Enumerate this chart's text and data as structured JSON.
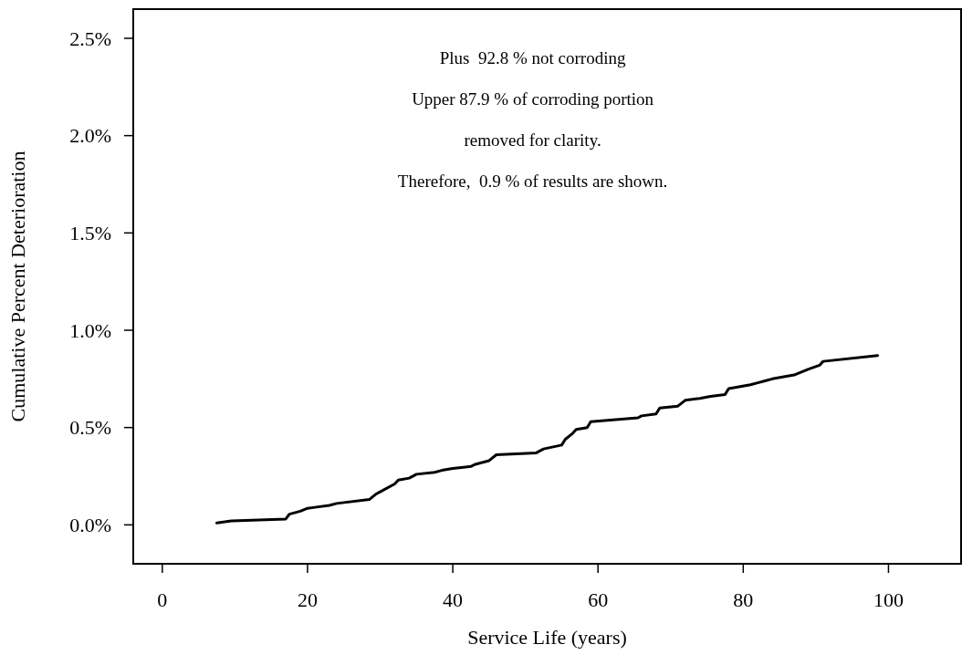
{
  "chart_data": {
    "type": "line",
    "xlabel": "Service Life (years)",
    "ylabel": "Cumulative Percent Deterioration",
    "annotations": [
      "Plus  92.8 % not corroding",
      "Upper 87.9 % of corroding portion",
      "removed for clarity.",
      "Therefore,  0.9 % of results are shown."
    ],
    "xlim": [
      -4,
      110
    ],
    "xticks": [
      0,
      20,
      40,
      60,
      80,
      100
    ],
    "ylim": [
      -0.2,
      2.65
    ],
    "yticks": [
      {
        "value": 0,
        "label": "0.0%"
      },
      {
        "value": 0.5,
        "label": "0.5%"
      },
      {
        "value": 1,
        "label": "1.0%"
      },
      {
        "value": 1.5,
        "label": "1.5%"
      },
      {
        "value": 2,
        "label": "2.0%"
      },
      {
        "value": 2.5,
        "label": "2.5%"
      }
    ],
    "grid": false,
    "line_style": "solid",
    "series": [
      {
        "color": "#000000",
        "x": [
          7.5,
          9.5,
          17,
          17.5,
          19,
          20,
          21,
          23,
          24,
          28.5,
          29.5,
          30,
          32,
          32.5,
          34,
          35,
          37.5,
          38.5,
          40,
          42.5,
          43,
          45,
          46,
          51.5,
          52.5,
          55,
          55.5,
          56.5,
          57,
          58.5,
          59,
          65.5,
          66,
          68,
          68.5,
          71,
          72,
          74,
          75.5,
          77.5,
          78,
          81,
          82,
          83,
          84,
          87,
          89,
          90.5,
          91,
          98.5
        ],
        "values": [
          0.01,
          0.02,
          0.03,
          0.055,
          0.07,
          0.085,
          0.09,
          0.1,
          0.11,
          0.13,
          0.16,
          0.17,
          0.21,
          0.23,
          0.24,
          0.26,
          0.27,
          0.28,
          0.29,
          0.3,
          0.31,
          0.33,
          0.36,
          0.37,
          0.39,
          0.41,
          0.44,
          0.47,
          0.49,
          0.5,
          0.53,
          0.55,
          0.56,
          0.57,
          0.6,
          0.61,
          0.64,
          0.65,
          0.66,
          0.67,
          0.7,
          0.72,
          0.73,
          0.74,
          0.75,
          0.77,
          0.8,
          0.82,
          0.84,
          0.87
        ]
      }
    ]
  }
}
